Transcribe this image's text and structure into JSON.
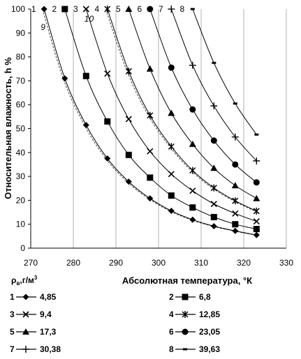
{
  "chart_data": {
    "type": "scatter",
    "title": "",
    "xlabel": "Абсолютная температура, °К",
    "ylabel": "Относительная влажность, h %",
    "xlim": [
      270,
      330
    ],
    "ylim": [
      0,
      100
    ],
    "xticks": [
      "270",
      "280",
      "290",
      "300",
      "310",
      "320",
      "330"
    ],
    "yticks": [
      "0",
      "10",
      "20",
      "30",
      "40",
      "50",
      "60",
      "70",
      "80",
      "90",
      "100"
    ],
    "grid": "vertical-only",
    "legend_title": "ρв,г/м³",
    "series": [
      {
        "id": "1",
        "name": "4,85",
        "marker": "diamond",
        "x": [
          273.15,
          278,
          283,
          288,
          293,
          298,
          303,
          308,
          313,
          318,
          323
        ],
        "y": [
          100,
          71,
          51.5,
          37.5,
          27.8,
          20.8,
          15.6,
          11.9,
          9.2,
          7.2,
          5.5
        ]
      },
      {
        "id": "2",
        "name": "6,8",
        "marker": "square",
        "x": [
          278,
          283,
          288,
          293,
          298,
          303,
          308,
          313,
          318,
          323
        ],
        "y": [
          100,
          72,
          53,
          39,
          29.5,
          22,
          17,
          13,
          10,
          8
        ]
      },
      {
        "id": "3",
        "name": "9,4",
        "marker": "x",
        "x": [
          283,
          288,
          293,
          298,
          303,
          308,
          313,
          318,
          323
        ],
        "y": [
          100,
          73,
          54,
          40.5,
          31,
          24,
          18.5,
          14.5,
          11.2
        ]
      },
      {
        "id": "4",
        "name": "12,85",
        "marker": "asterisk",
        "x": [
          288,
          293,
          298,
          303,
          308,
          313,
          318,
          323
        ],
        "y": [
          100,
          74,
          55.5,
          42.5,
          32.5,
          25.2,
          19.8,
          15.5
        ]
      },
      {
        "id": "5",
        "name": "17,3",
        "marker": "triangle",
        "x": [
          293,
          298,
          303,
          308,
          313,
          318,
          323
        ],
        "y": [
          100,
          75,
          56.5,
          43.5,
          33.5,
          26.2,
          20.8
        ]
      },
      {
        "id": "6",
        "name": "23,05",
        "marker": "circle",
        "x": [
          298,
          303,
          308,
          313,
          318,
          323
        ],
        "y": [
          100,
          75.5,
          58,
          45,
          35,
          27.5
        ]
      },
      {
        "id": "7",
        "name": "30,38",
        "marker": "plus",
        "x": [
          303,
          308,
          313,
          318,
          323
        ],
        "y": [
          100,
          76.5,
          59.5,
          46.5,
          36.5
        ]
      },
      {
        "id": "8",
        "name": "39,63",
        "marker": "dash",
        "x": [
          308,
          313,
          318,
          323
        ],
        "y": [
          100,
          77.5,
          60.5,
          47.5
        ]
      }
    ],
    "dashed_curves": [
      {
        "label": "9",
        "of_series": "1"
      },
      {
        "label": "10",
        "of_series": "4"
      }
    ]
  }
}
